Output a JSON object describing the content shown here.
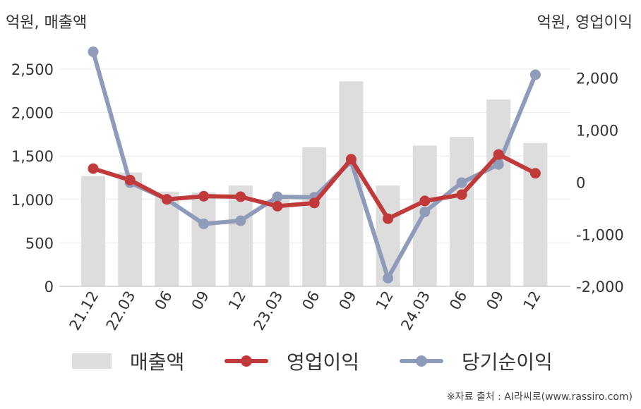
{
  "chart_data": {
    "type": "bar",
    "title": "",
    "ylabel_left": "억원, 매출액",
    "ylabel_right": "억원, 영업이익",
    "categories": [
      "21.12",
      "22.03",
      "06",
      "09",
      "12",
      "23.03",
      "06",
      "09",
      "12",
      "24.03",
      "06",
      "09",
      "12"
    ],
    "ylim_left": [
      0,
      2500
    ],
    "yticks_left": [
      0,
      500,
      1000,
      1500,
      2000,
      2500
    ],
    "ytick_labels_left": [
      "0",
      "500",
      "1,000",
      "1,500",
      "2,000",
      "2,500"
    ],
    "ylim_right": [
      -2200,
      2600
    ],
    "yticks_right": [
      -2000,
      -1000,
      0,
      1000,
      2000
    ],
    "ytick_labels_right": [
      "-2,000",
      "-1,000",
      "0",
      "1,000",
      "2,000"
    ],
    "grid": true,
    "legend_position": "bottom",
    "series": [
      {
        "name": "매출액",
        "type": "bar",
        "axis": "left",
        "color": "#dddddd",
        "values": [
          1270,
          1310,
          1090,
          1080,
          1160,
          1000,
          1600,
          2360,
          1160,
          1620,
          1720,
          2150,
          1650
        ]
      },
      {
        "name": "영업이익",
        "type": "line",
        "axis": "right",
        "color": "#c0393b",
        "values": [
          260,
          40,
          -330,
          -270,
          -280,
          -460,
          -400,
          440,
          -700,
          -360,
          -240,
          530,
          170
        ]
      },
      {
        "name": "당기순이익",
        "type": "line",
        "axis": "right",
        "color": "#8f9bb8",
        "values": [
          2500,
          -10,
          -330,
          -800,
          -740,
          -280,
          -290,
          400,
          -1840,
          -570,
          -10,
          340,
          2060
        ]
      }
    ]
  },
  "source": "※자료 출처 : AI라씨로(www.rassiro.com)"
}
